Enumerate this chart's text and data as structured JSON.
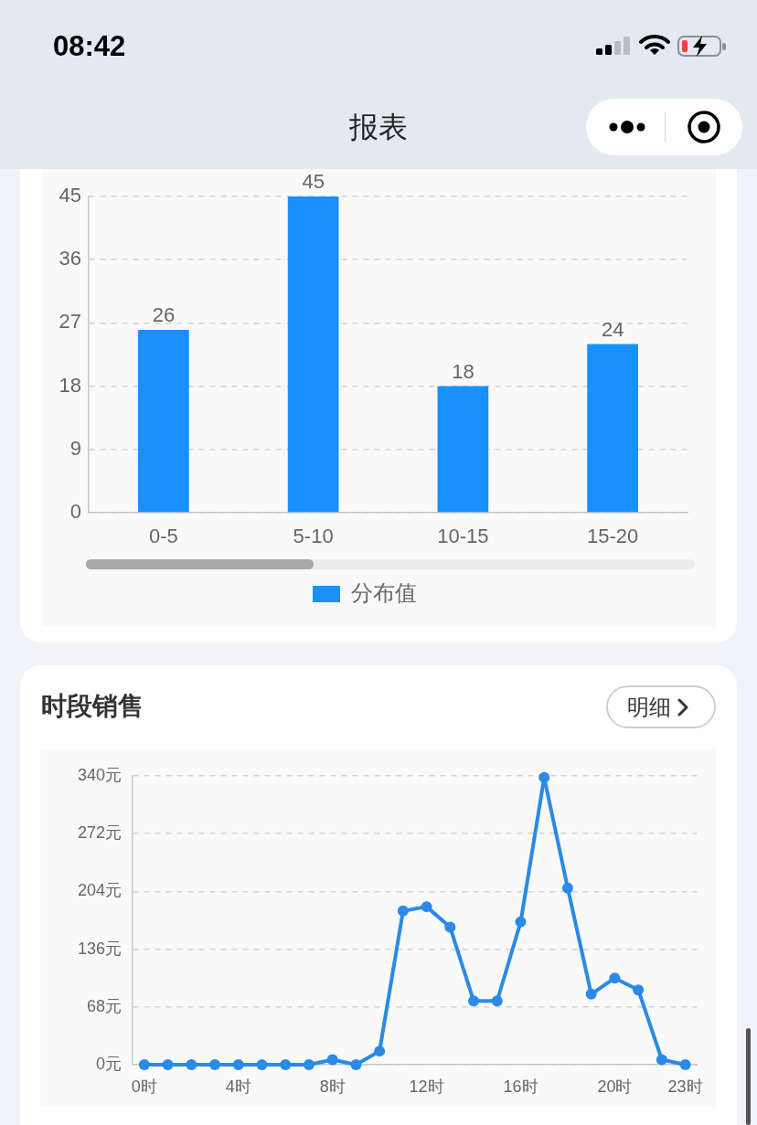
{
  "chart_data": [
    {
      "type": "bar",
      "title": "报表",
      "annotations": [
        "08:42"
      ],
      "categories": [
        "0-5",
        "5-10",
        "10-15",
        "15-20"
      ],
      "series": [
        {
          "name": "分布值",
          "color": "#1890ff",
          "values": [
            26,
            45,
            18,
            24
          ]
        }
      ],
      "ylim": [
        0,
        45
      ],
      "yticks": [
        0,
        9,
        18,
        27,
        36,
        45
      ],
      "grid": "y",
      "legend": "bottom",
      "data_labels": true
    },
    {
      "type": "line",
      "title": "时段销售",
      "annotations": [
        "明细"
      ],
      "categories": [
        "0时",
        null,
        null,
        null,
        "4时",
        null,
        null,
        null,
        "8时",
        null,
        null,
        null,
        "12时",
        null,
        null,
        null,
        "16时",
        null,
        null,
        null,
        "20时",
        null,
        null,
        "23时"
      ],
      "series": [
        {
          "color": "#2a8ae6",
          "values": [
            0,
            0,
            0,
            0,
            0,
            0,
            0,
            0,
            6,
            0,
            16,
            181,
            186,
            162,
            75,
            75,
            168,
            338,
            208,
            83,
            102,
            88,
            6,
            0
          ]
        }
      ],
      "ylim": [
        0,
        340
      ],
      "yticks": [
        {
          "value": 0,
          "label": "0元"
        },
        {
          "value": 68,
          "label": "68元"
        },
        {
          "value": 136,
          "label": "136元"
        },
        {
          "value": 204,
          "label": "204元"
        },
        {
          "value": 272,
          "label": "272元"
        },
        {
          "value": 340,
          "label": "340元"
        }
      ],
      "grid": "y",
      "marker": "circle"
    }
  ]
}
